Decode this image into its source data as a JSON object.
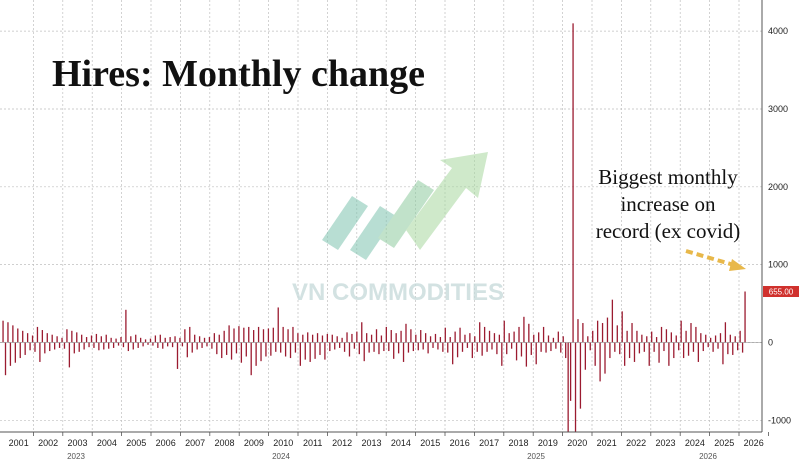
{
  "chart_data": {
    "type": "bar",
    "title": "Hires: Monthly change",
    "annotation": [
      "Biggest monthly",
      "increase on",
      "record (ex covid)"
    ],
    "last_value_label": "655.00",
    "watermark": "VN COMMODITIES",
    "ylim": [
      -1150,
      4400
    ],
    "yticks": [
      -1000,
      0,
      1000,
      2000,
      3000,
      4000
    ],
    "ytick_labels": [
      "-1000",
      "0",
      "1000",
      "2000",
      "3000",
      "4000"
    ],
    "x_year_labels": [
      "2001",
      "2002",
      "2003",
      "2004",
      "2005",
      "2006",
      "2007",
      "2008",
      "2009",
      "2010",
      "2011",
      "2012",
      "2013",
      "2014",
      "2015",
      "2016",
      "2017",
      "2018",
      "2019",
      "2020",
      "2021",
      "2022",
      "2023",
      "2024",
      "2025",
      "2026"
    ],
    "x_sub_labels": [
      "2023",
      "2024",
      "2025",
      "2026"
    ],
    "colors": {
      "bars": "#9b1b30",
      "last_value": "#d0312d",
      "arrow": "#e8b84a",
      "grid": "#bfbfbf"
    },
    "grid": true,
    "series": [
      {
        "values": [
          280,
          -420,
          260,
          -300,
          220,
          -260,
          180,
          -200,
          150,
          -160,
          120,
          -100,
          90,
          -120,
          200,
          -250,
          160,
          -140,
          120,
          -110,
          100,
          -90,
          80,
          -70,
          60,
          -80,
          170,
          -320,
          150,
          -140,
          130,
          -120,
          100,
          -90,
          70,
          -60,
          90,
          -70,
          110,
          -100,
          80,
          -90,
          100,
          -80,
          60,
          -70,
          50,
          -40,
          70,
          -60,
          420,
          -110,
          80,
          -90,
          100,
          -70,
          60,
          -50,
          40,
          -30,
          50,
          -40,
          90,
          -70,
          100,
          -80,
          60,
          -50,
          70,
          -60,
          80,
          -340,
          60,
          -50,
          170,
          -190,
          200,
          -130,
          100,
          -90,
          80,
          -70,
          60,
          -50,
          70,
          -80,
          120,
          -150,
          100,
          -200,
          150,
          -160,
          220,
          -220,
          180,
          -140,
          210,
          -260,
          190,
          -180,
          200,
          -420,
          160,
          -300,
          200,
          -240,
          170,
          -180,
          180,
          -170,
          190,
          -120,
          450,
          -130,
          200,
          -180,
          170,
          -200,
          200,
          -130,
          120,
          -300,
          100,
          -220,
          130,
          -250,
          100,
          -210,
          120,
          -160,
          90,
          -220,
          110,
          -110,
          100,
          -90,
          80,
          -70,
          60,
          -120,
          130,
          -180,
          110,
          -80,
          140,
          -150,
          260,
          -240,
          120,
          -130,
          100,
          -120,
          170,
          -150,
          90,
          -110,
          200,
          -110,
          160,
          -210,
          120,
          -140,
          150,
          -250,
          240,
          -130,
          170,
          -110,
          100,
          -100,
          160,
          -90,
          120,
          -140,
          80,
          -70,
          110,
          -90,
          70,
          -120,
          190,
          -130,
          70,
          -280,
          140,
          -190,
          190,
          -120,
          100,
          -70,
          120,
          -200,
          80,
          -120,
          260,
          -170,
          200,
          -120,
          150,
          -90,
          120,
          -150,
          100,
          -300,
          280,
          -150,
          120,
          -80,
          140,
          -230,
          200,
          -180,
          330,
          -310,
          240,
          -160,
          100,
          -280,
          130,
          -120,
          200,
          -130,
          90,
          -110,
          60,
          -80,
          140,
          -130,
          80,
          -200,
          -1150,
          -750,
          4100,
          -1150,
          300,
          -850,
          250,
          -350,
          80,
          -100,
          150,
          -300,
          280,
          -500,
          250,
          -400,
          320,
          -200,
          550,
          -120,
          220,
          -150,
          400,
          -300,
          150,
          -200,
          250,
          -250,
          150,
          -140,
          100,
          -120,
          80,
          -300,
          140,
          -120,
          70,
          -260,
          200,
          -110,
          170,
          -300,
          130,
          -200,
          90,
          -100,
          280,
          -200,
          150,
          -170,
          250,
          -120,
          200,
          -250,
          120,
          -110,
          100,
          -60,
          60,
          -120,
          90,
          -80,
          120,
          -280,
          260,
          -150,
          100,
          -160,
          80,
          -100,
          150,
          -130,
          655
        ]
      }
    ]
  }
}
